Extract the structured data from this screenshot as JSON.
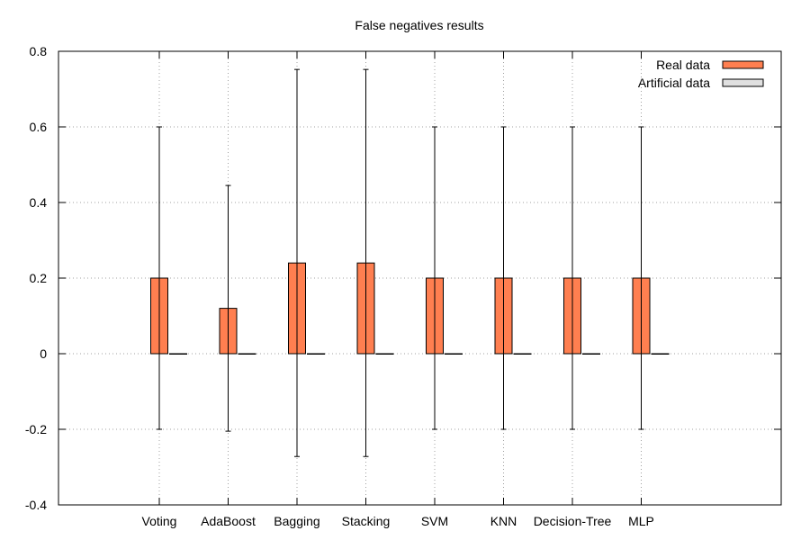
{
  "chart_data": {
    "type": "bar",
    "title": "False negatives results",
    "xlabel": "",
    "ylabel": "",
    "ylim": [
      -0.4,
      0.8
    ],
    "yticks": [
      -0.4,
      -0.2,
      0,
      0.2,
      0.4,
      0.6,
      0.8
    ],
    "ytick_labels": [
      "-0.4",
      "-0.2",
      "0",
      "0.2",
      "0.4",
      "0.6",
      "0.8"
    ],
    "grid": true,
    "legend_position": "top-right",
    "categories": [
      "Voting",
      "AdaBoost",
      "Bagging",
      "Stacking",
      "SVM",
      "KNN",
      "Decision-Tree",
      "MLP"
    ],
    "series": [
      {
        "name": "Real data",
        "color": "#ff7f50",
        "values": [
          0.2,
          0.12,
          0.24,
          0.24,
          0.2,
          0.2,
          0.2,
          0.2
        ],
        "error_low": [
          -0.2,
          -0.205,
          -0.272,
          -0.272,
          -0.2,
          -0.2,
          -0.2,
          -0.2
        ],
        "error_high": [
          0.6,
          0.445,
          0.752,
          0.752,
          0.6,
          0.6,
          0.6,
          0.6
        ]
      },
      {
        "name": "Artificial data",
        "color": "#e0e0e0",
        "values": [
          0,
          0,
          0,
          0,
          0,
          0,
          0,
          0
        ]
      }
    ]
  }
}
